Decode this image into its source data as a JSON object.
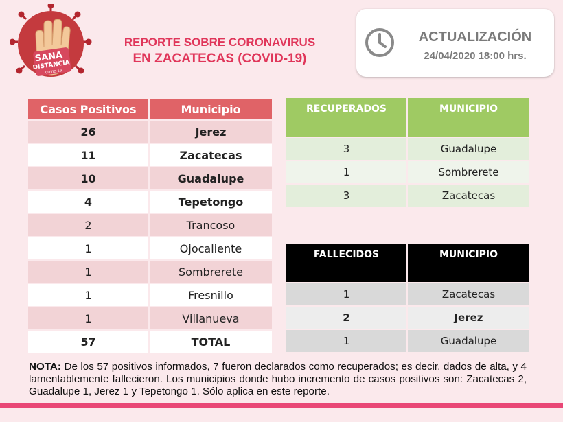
{
  "logo": {
    "line1": "SANA",
    "line2": "DISTANCIA",
    "line3": "COVID-19",
    "icon": "hand-virus-logo"
  },
  "title": {
    "line1": "REPORTE SOBRE CORONAVIRUS",
    "line2": "EN ZACATECAS  (COVID-19)"
  },
  "update": {
    "label": "ACTUALIZACIÓN",
    "datetime": "24/04/2020 18:00 hrs.",
    "icon": "clock-icon"
  },
  "positivos": {
    "headers": [
      "Casos Positivos",
      "Municipio"
    ],
    "rows": [
      {
        "casos": "26",
        "municipio": "Jerez"
      },
      {
        "casos": "11",
        "municipio": "Zacatecas"
      },
      {
        "casos": "10",
        "municipio": "Guadalupe"
      },
      {
        "casos": "4",
        "municipio": "Tepetongo"
      },
      {
        "casos": "2",
        "municipio": "Trancoso"
      },
      {
        "casos": "1",
        "municipio": "Ojocaliente"
      },
      {
        "casos": "1",
        "municipio": "Sombrerete"
      },
      {
        "casos": "1",
        "municipio": "Fresnillo"
      },
      {
        "casos": "1",
        "municipio": "Villanueva"
      },
      {
        "casos": "57",
        "municipio": "TOTAL"
      }
    ]
  },
  "recuperados": {
    "headers": [
      "RECUPERADOS",
      "MUNICIPIO"
    ],
    "rows": [
      {
        "casos": "3",
        "municipio": "Guadalupe"
      },
      {
        "casos": "1",
        "municipio": "Sombrerete"
      },
      {
        "casos": "3",
        "municipio": "Zacatecas"
      }
    ]
  },
  "fallecidos": {
    "headers": [
      "FALLECIDOS",
      "MUNICIPIO"
    ],
    "rows": [
      {
        "casos": "1",
        "municipio": "Zacatecas"
      },
      {
        "casos": "2",
        "municipio": "Jerez"
      },
      {
        "casos": "1",
        "municipio": "Guadalupe"
      }
    ]
  },
  "note": {
    "label": "NOTA:",
    "text": " De los 57 positivos informados, 7 fueron declarados como recuperados; es decir, dados de alta, y 4 lamentablemente fallecieron. Los municipios donde hubo incremento de casos positivos son: Zacatecas 2, Guadalupe 1, Jerez 1 y Tepetongo 1. Sólo aplica en este reporte."
  },
  "colors": {
    "accent": "#e0365a",
    "pos_header": "#e06367",
    "rec_header": "#9fca63",
    "fal_header": "#000000",
    "bar": "#e94776"
  }
}
